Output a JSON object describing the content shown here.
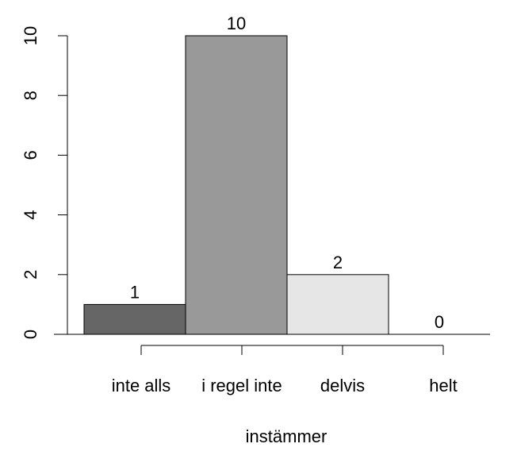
{
  "chart_data": {
    "type": "bar",
    "categories": [
      "inte alls",
      "i regel inte",
      "delvis",
      "helt"
    ],
    "values": [
      1,
      10,
      2,
      0
    ],
    "data_labels": [
      "1",
      "10",
      "2",
      "0"
    ],
    "bar_colors": [
      "#666666",
      "#999999",
      "#e6e6e6",
      "#ffffff"
    ],
    "xlabel": "instämmer",
    "ylabel": "",
    "title": "",
    "ylim": [
      0,
      10
    ],
    "yticks": [
      0,
      2,
      4,
      6,
      8,
      10
    ],
    "grid": false,
    "legend": "none"
  }
}
